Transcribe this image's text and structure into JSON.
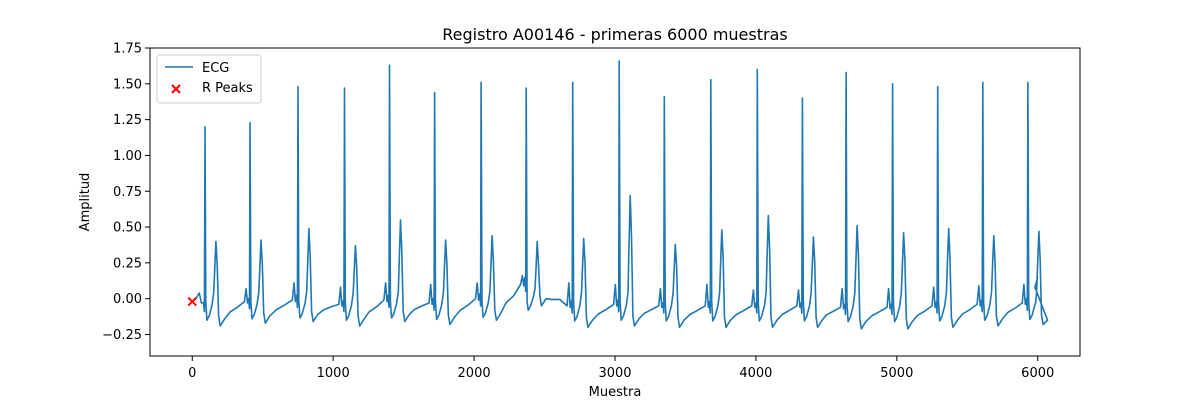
{
  "chart_data": {
    "type": "line",
    "title": "Registro A00146 - primeras 6000 muestras",
    "xlabel": "Muestra",
    "ylabel": "Amplitud",
    "xlim": [
      -300,
      6300
    ],
    "ylim": [
      -0.4,
      1.75
    ],
    "xticks": [
      0,
      1000,
      2000,
      3000,
      4000,
      5000,
      6000
    ],
    "yticks": [
      -0.25,
      0.0,
      0.25,
      0.5,
      0.75,
      1.0,
      1.25,
      1.5,
      1.75
    ],
    "xtick_labels": [
      "0",
      "1000",
      "2000",
      "3000",
      "4000",
      "5000",
      "6000"
    ],
    "ytick_labels": [
      "−0.25",
      "0.00",
      "0.25",
      "0.50",
      "0.75",
      "1.00",
      "1.25",
      "1.50",
      "1.75"
    ],
    "grid": false,
    "legend_position": "top-left",
    "series": [
      {
        "name": "ECG",
        "kind": "line",
        "color": "#1f77b4",
        "beats": [
          {
            "r": 90,
            "r_amp": 1.2,
            "t_amp": 0.4,
            "baseline": -0.04,
            "pre": 0.04
          },
          {
            "r": 410,
            "r_amp": 1.23,
            "t_amp": 0.41,
            "baseline": -0.02,
            "pre": 0.07
          },
          {
            "r": 750,
            "r_amp": 1.48,
            "t_amp": 0.49,
            "baseline": -0.01,
            "pre": 0.11
          },
          {
            "r": 1080,
            "r_amp": 1.47,
            "t_amp": 0.37,
            "baseline": -0.04,
            "pre": 0.08
          },
          {
            "r": 1400,
            "r_amp": 1.63,
            "t_amp": 0.55,
            "baseline": -0.01,
            "pre": 0.11
          },
          {
            "r": 1720,
            "r_amp": 1.44,
            "t_amp": 0.41,
            "baseline": -0.03,
            "pre": 0.1
          },
          {
            "r": 2050,
            "r_amp": 1.51,
            "t_amp": 0.44,
            "baseline": 0.0,
            "pre": 0.11
          },
          {
            "r": 2370,
            "r_amp": 1.47,
            "t_amp": 0.4,
            "baseline": 0.1,
            "pre": 0.16
          },
          {
            "r": 2700,
            "r_amp": 1.51,
            "t_amp": 0.42,
            "baseline": -0.05,
            "pre": 0.11
          },
          {
            "r": 3030,
            "r_amp": 1.66,
            "t_amp": 0.72,
            "baseline": -0.04,
            "pre": 0.1
          },
          {
            "r": 3350,
            "r_amp": 1.41,
            "t_amp": 0.38,
            "baseline": -0.05,
            "pre": 0.07
          },
          {
            "r": 3680,
            "r_amp": 1.53,
            "t_amp": 0.48,
            "baseline": -0.05,
            "pre": 0.1
          },
          {
            "r": 4010,
            "r_amp": 1.6,
            "t_amp": 0.58,
            "baseline": -0.05,
            "pre": 0.06
          },
          {
            "r": 4330,
            "r_amp": 1.4,
            "t_amp": 0.43,
            "baseline": -0.05,
            "pre": 0.06
          },
          {
            "r": 4640,
            "r_amp": 1.58,
            "t_amp": 0.51,
            "baseline": -0.06,
            "pre": 0.07
          },
          {
            "r": 4970,
            "r_amp": 1.5,
            "t_amp": 0.46,
            "baseline": -0.06,
            "pre": 0.07
          },
          {
            "r": 5290,
            "r_amp": 1.48,
            "t_amp": 0.49,
            "baseline": -0.05,
            "pre": 0.08
          },
          {
            "r": 5610,
            "r_amp": 1.51,
            "t_amp": 0.44,
            "baseline": -0.04,
            "pre": 0.09
          },
          {
            "r": 5930,
            "r_amp": 1.51,
            "t_amp": 0.47,
            "baseline": -0.03,
            "pre": 0.1
          }
        ],
        "end": {
          "x": 6000,
          "y": 0.15
        }
      },
      {
        "name": "R Peaks",
        "kind": "scatter",
        "marker": "x",
        "color": "#ff0000",
        "x": [
          0
        ],
        "y": [
          -0.02
        ]
      }
    ]
  }
}
